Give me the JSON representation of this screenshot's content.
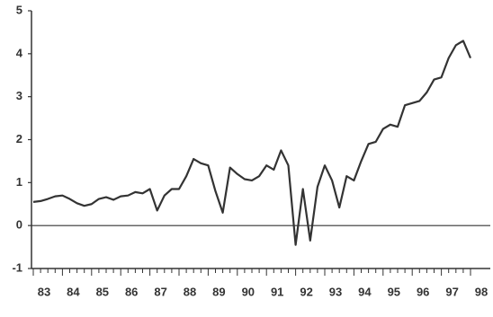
{
  "chart_data": {
    "type": "line",
    "categories": [
      "83",
      null,
      null,
      null,
      "84",
      null,
      null,
      null,
      "85",
      null,
      null,
      null,
      "86",
      null,
      null,
      null,
      "87",
      null,
      null,
      null,
      "88",
      null,
      null,
      null,
      "89",
      null,
      null,
      null,
      "90",
      null,
      null,
      null,
      "91",
      null,
      null,
      null,
      "92",
      null,
      null,
      null,
      "93",
      null,
      null,
      null,
      "94",
      null,
      null,
      null,
      "95",
      null,
      null,
      null,
      "96",
      null,
      null,
      null,
      "97",
      null,
      null,
      null,
      "98"
    ],
    "values": [
      0.55,
      0.57,
      0.62,
      0.68,
      0.7,
      0.62,
      0.52,
      0.46,
      0.5,
      0.62,
      0.66,
      0.6,
      0.68,
      0.7,
      0.78,
      0.75,
      0.85,
      0.35,
      0.7,
      0.85,
      0.85,
      1.15,
      1.55,
      1.45,
      1.4,
      0.8,
      0.3,
      1.35,
      1.2,
      1.08,
      1.05,
      1.15,
      1.4,
      1.3,
      1.75,
      1.4,
      -0.45,
      0.85,
      -0.35,
      0.9,
      1.4,
      1.05,
      0.42,
      1.15,
      1.05,
      1.5,
      1.9,
      1.95,
      2.25,
      2.35,
      2.3,
      2.8,
      2.85,
      2.9,
      3.1,
      3.4,
      3.45,
      3.9,
      4.2,
      4.3,
      3.9
    ],
    "color": "#333333",
    "ylim": [
      -1,
      5
    ],
    "yticks": [
      -1,
      0,
      1,
      2,
      3,
      4,
      5
    ]
  }
}
